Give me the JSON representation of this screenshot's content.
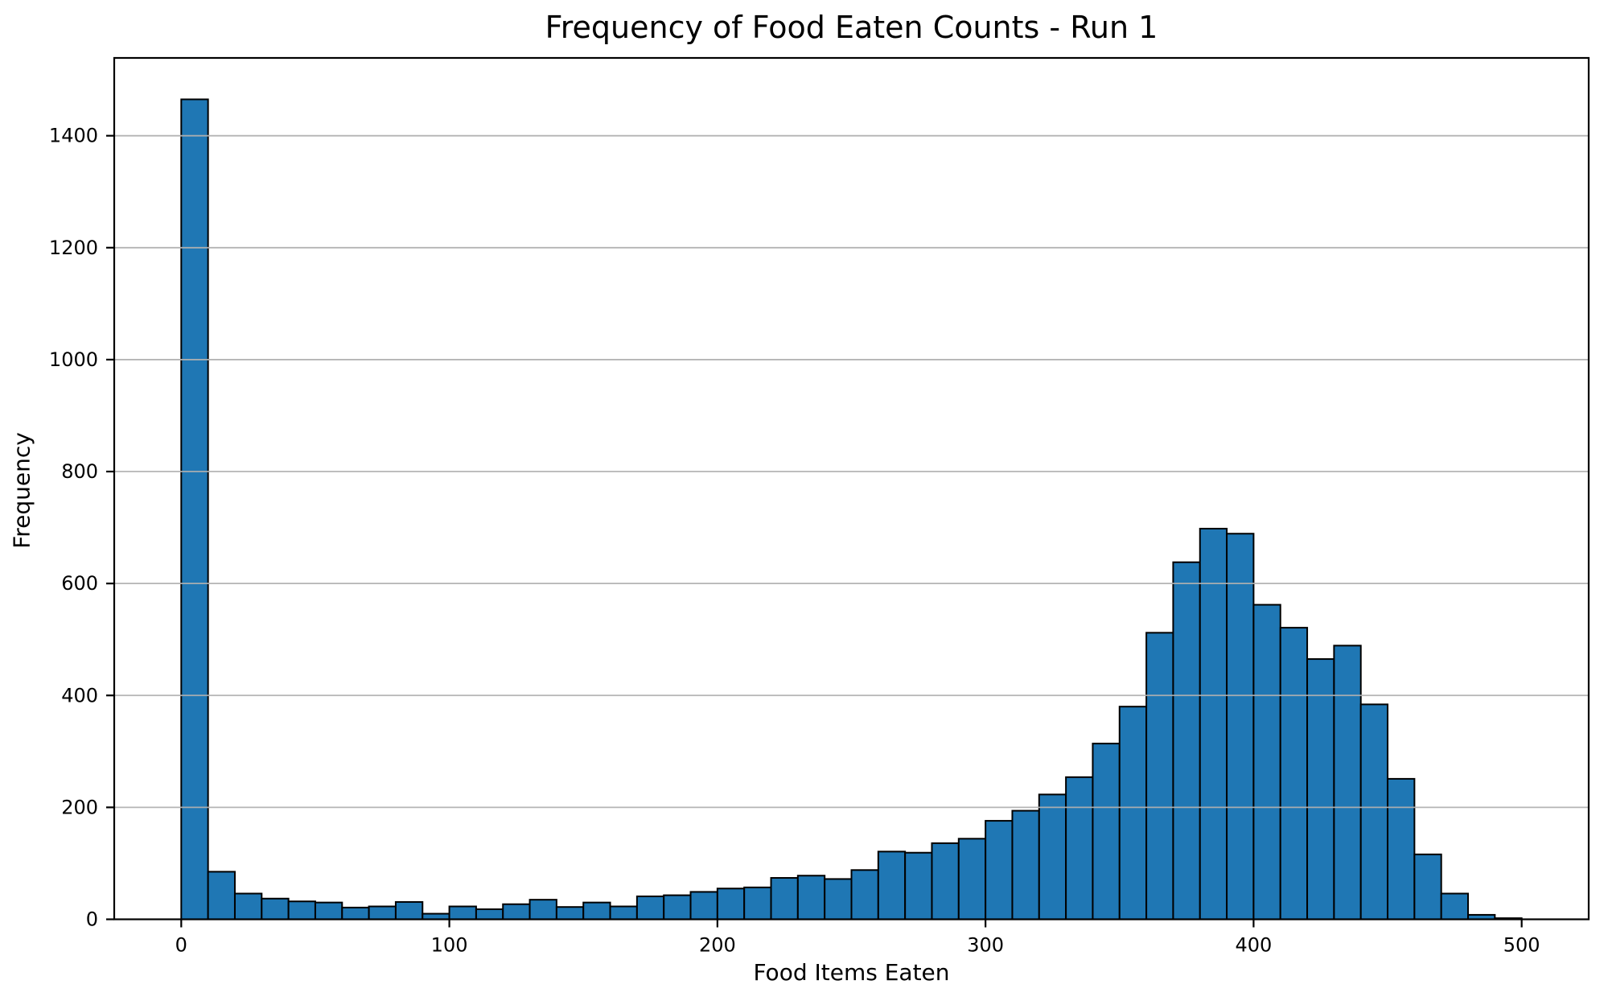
{
  "chart_data": {
    "type": "bar",
    "subtype": "histogram",
    "title": "Frequency of Food Eaten Counts - Run 1",
    "xlabel": "Food Items Eaten",
    "ylabel": "Frequency",
    "bin_width": 10,
    "bin_start": 0,
    "values": [
      1465,
      85,
      46,
      37,
      32,
      30,
      21,
      23,
      31,
      10,
      23,
      18,
      27,
      35,
      22,
      30,
      23,
      41,
      43,
      49,
      55,
      57,
      74,
      78,
      72,
      88,
      121,
      119,
      136,
      144,
      176,
      194,
      223,
      254,
      314,
      380,
      512,
      638,
      698,
      689,
      562,
      521,
      465,
      489,
      384,
      251,
      116,
      46,
      8,
      2
    ],
    "xticks": [
      0,
      100,
      200,
      300,
      400,
      500
    ],
    "yticks": [
      0,
      200,
      400,
      600,
      800,
      1000,
      1200,
      1400
    ],
    "xlim": [
      -25,
      525
    ],
    "ylim": [
      0,
      1539
    ],
    "grid": "y",
    "legend": "none",
    "bar_color": "#1f77b4",
    "bar_edge_color": "#000000",
    "gridline_color": "#b0b0b0",
    "axis_color": "#000000",
    "text_color": "#000000"
  }
}
